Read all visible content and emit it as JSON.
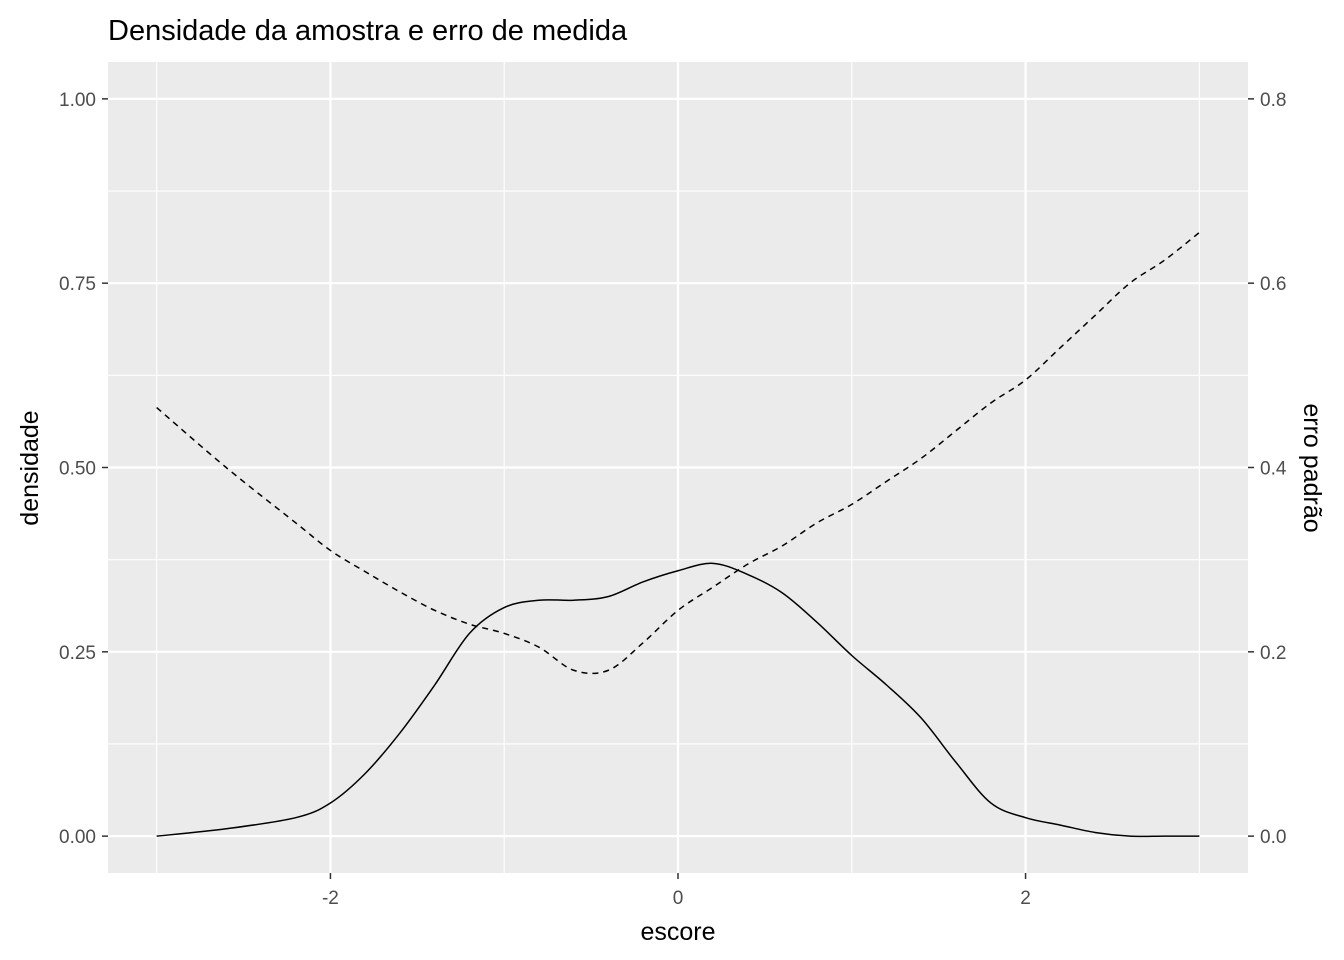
{
  "chart_data": {
    "type": "line",
    "title": "Densidade da amostra e erro de medida",
    "xlabel": "escore",
    "ylabel": "densidade",
    "y2label": "erro padrão",
    "xlim": [
      -3.28,
      3.28
    ],
    "ylim": [
      -0.05,
      1.05
    ],
    "y2lim": [
      -0.04,
      0.84
    ],
    "x_ticks": [
      -2,
      0,
      2
    ],
    "x_tick_labels": [
      "-2",
      "0",
      "2"
    ],
    "y_ticks": [
      0,
      0.25,
      0.5,
      0.75,
      1.0
    ],
    "y_tick_labels": [
      "0.00",
      "0.25",
      "0.50",
      "0.75",
      "1.00"
    ],
    "y2_ticks": [
      0,
      0.2,
      0.4,
      0.6,
      0.8
    ],
    "y2_tick_labels": [
      "0.0",
      "0.2",
      "0.4",
      "0.6",
      "0.8"
    ],
    "grid": true,
    "background": "#ebebeb",
    "grid_color": "#ffffff",
    "series": [
      {
        "axis": "left",
        "linestyle": "solid",
        "color": "#000000",
        "x": [
          -3.0,
          -2.6,
          -2.2,
          -2.0,
          -1.8,
          -1.6,
          -1.4,
          -1.2,
          -1.0,
          -0.8,
          -0.6,
          -0.4,
          -0.2,
          0.0,
          0.2,
          0.4,
          0.6,
          0.8,
          1.0,
          1.2,
          1.4,
          1.6,
          1.8,
          2.0,
          2.2,
          2.4,
          2.6,
          2.8,
          3.0
        ],
        "values": [
          0.0,
          0.01,
          0.025,
          0.045,
          0.085,
          0.14,
          0.205,
          0.275,
          0.31,
          0.32,
          0.32,
          0.325,
          0.345,
          0.36,
          0.37,
          0.355,
          0.33,
          0.29,
          0.245,
          0.205,
          0.16,
          0.1,
          0.045,
          0.025,
          0.015,
          0.005,
          0.0,
          0.0,
          0.0
        ]
      },
      {
        "axis": "right",
        "linestyle": "dashed",
        "color": "#000000",
        "x": [
          -3.0,
          -2.6,
          -2.2,
          -2.0,
          -1.8,
          -1.6,
          -1.4,
          -1.2,
          -1.0,
          -0.8,
          -0.6,
          -0.4,
          -0.2,
          0.0,
          0.2,
          0.4,
          0.6,
          0.8,
          1.0,
          1.2,
          1.4,
          1.6,
          1.8,
          2.0,
          2.2,
          2.4,
          2.6,
          2.8,
          3.0
        ],
        "values": [
          0.465,
          0.4,
          0.34,
          0.31,
          0.287,
          0.265,
          0.245,
          0.23,
          0.22,
          0.205,
          0.18,
          0.18,
          0.21,
          0.245,
          0.27,
          0.295,
          0.315,
          0.34,
          0.36,
          0.385,
          0.41,
          0.44,
          0.47,
          0.495,
          0.53,
          0.565,
          0.6,
          0.625,
          0.655
        ]
      }
    ]
  }
}
